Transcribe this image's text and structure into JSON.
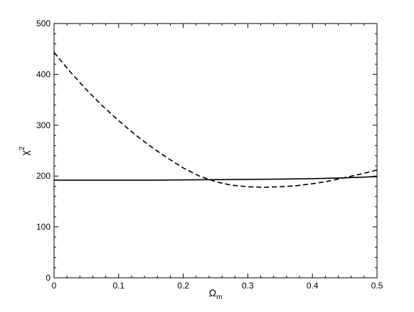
{
  "chart_data": {
    "type": "line",
    "xlabel": "Ω",
    "xlabel_subscript": "m",
    "ylabel": "χ",
    "ylabel_superscript": "2",
    "xlim": [
      0,
      0.5
    ],
    "ylim": [
      0,
      500
    ],
    "x_ticks": [
      "0",
      "0.1",
      "0.2",
      "0.3",
      "0.4",
      "0.5"
    ],
    "y_ticks": [
      "0",
      "100",
      "200",
      "300",
      "400",
      "500"
    ],
    "grid": false,
    "series": [
      {
        "style": "solid",
        "color": "#000000",
        "x": [
          0,
          0.05,
          0.1,
          0.15,
          0.2,
          0.25,
          0.3,
          0.35,
          0.4,
          0.45,
          0.5
        ],
        "y": [
          192,
          192,
          192,
          192,
          192.5,
          193,
          193.5,
          194,
          195,
          196.5,
          199
        ]
      },
      {
        "style": "dashed",
        "color": "#000000",
        "x": [
          0,
          0.025,
          0.05,
          0.075,
          0.1,
          0.125,
          0.15,
          0.175,
          0.2,
          0.225,
          0.25,
          0.275,
          0.3,
          0.325,
          0.35,
          0.375,
          0.4,
          0.425,
          0.45,
          0.475,
          0.5
        ],
        "y": [
          443,
          405,
          370,
          338,
          309,
          282,
          258,
          236,
          216,
          200,
          189,
          182,
          179,
          178,
          179,
          181,
          185,
          190,
          197,
          204,
          212
        ]
      }
    ]
  }
}
